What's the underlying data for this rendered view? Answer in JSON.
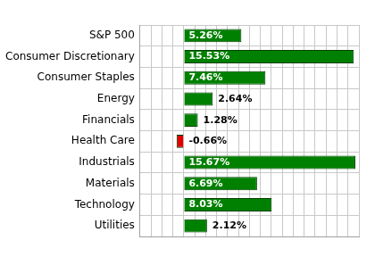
{
  "chart_data": {
    "type": "bar",
    "orientation": "horizontal",
    "categories": [
      "S&P 500",
      "Consumer Discretionary",
      "Consumer Staples",
      "Energy",
      "Financials",
      "Health Care",
      "Industrials",
      "Materials",
      "Technology",
      "Utilities"
    ],
    "values": [
      5.26,
      15.53,
      7.46,
      2.64,
      1.28,
      -0.66,
      15.67,
      6.69,
      8.03,
      2.12
    ],
    "value_labels": [
      "5.26%",
      "15.53%",
      "7.46%",
      "2.64%",
      "1.28%",
      "-0.66%",
      "15.67%",
      "6.69%",
      "8.03%",
      "2.12%"
    ],
    "colors": [
      "#008000",
      "#008000",
      "#008000",
      "#008000",
      "#008000",
      "#e00000",
      "#008000",
      "#008000",
      "#008000",
      "#008000"
    ],
    "xlim": [
      -4,
      16
    ],
    "xticks": [
      -4,
      -3,
      -2,
      -1,
      0,
      1,
      2,
      3,
      4,
      5,
      6,
      7,
      8,
      9,
      10,
      11,
      12,
      13,
      14,
      15,
      16
    ],
    "grid": true,
    "data_labels": true,
    "tick_labels": "y"
  }
}
